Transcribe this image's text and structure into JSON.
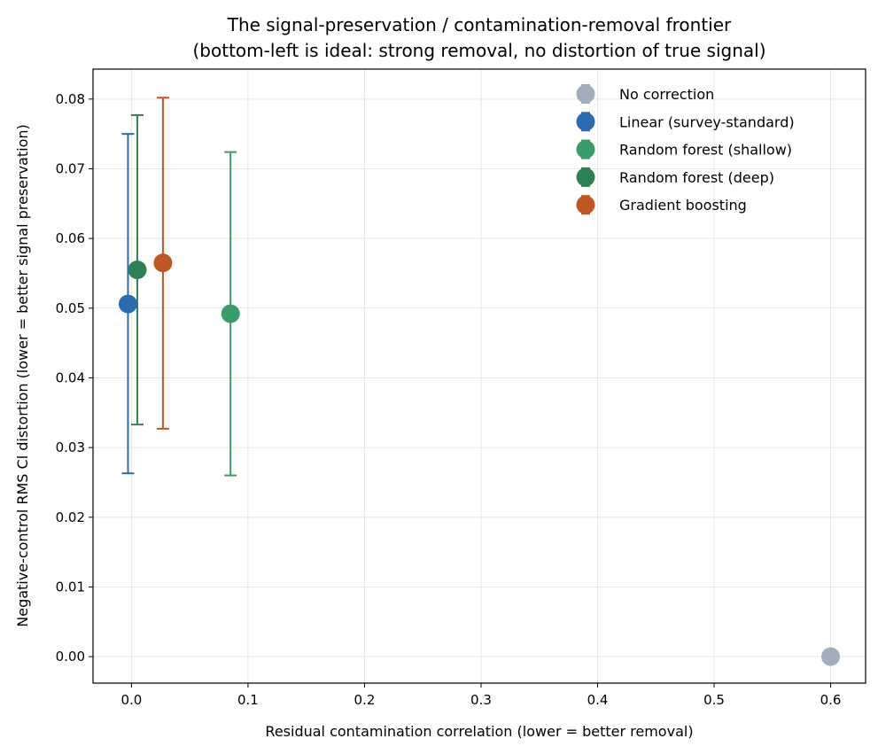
{
  "chart_data": {
    "type": "scatter",
    "title_lines": [
      "The signal-preservation / contamination-removal frontier",
      "(bottom-left is ideal: strong removal, no distortion of true signal)"
    ],
    "xlabel": "Residual contamination correlation (lower = better removal)",
    "ylabel": "Negative-control RMS Cl distortion (lower = better signal preservation)",
    "xlim": [
      -0.033,
      0.63
    ],
    "ylim": [
      -0.0038,
      0.0843
    ],
    "xticks": [
      0.0,
      0.1,
      0.2,
      0.3,
      0.4,
      0.5,
      0.6
    ],
    "yticks": [
      0.0,
      0.01,
      0.02,
      0.03,
      0.04,
      0.05,
      0.06,
      0.07,
      0.08
    ],
    "xtick_labels": [
      "0.0",
      "0.1",
      "0.2",
      "0.3",
      "0.4",
      "0.5",
      "0.6"
    ],
    "ytick_labels": [
      "0.00",
      "0.01",
      "0.02",
      "0.03",
      "0.04",
      "0.05",
      "0.06",
      "0.07",
      "0.08"
    ],
    "grid": true,
    "legend_position": "top-right",
    "series": [
      {
        "name": "No correction",
        "color": "#a3adbd",
        "x": 0.6,
        "y": 0.0,
        "yerr_low": 0.0,
        "yerr_high": 0.0
      },
      {
        "name": "Linear (survey-standard)",
        "color": "#2b6cb0",
        "x": -0.003,
        "y": 0.0506,
        "yerr_low": 0.0263,
        "yerr_high": 0.075
      },
      {
        "name": "Random forest (shallow)",
        "color": "#3a9c69",
        "x": 0.085,
        "y": 0.0492,
        "yerr_low": 0.026,
        "yerr_high": 0.0724
      },
      {
        "name": "Random forest (deep)",
        "color": "#2e8055",
        "x": 0.005,
        "y": 0.0555,
        "yerr_low": 0.0333,
        "yerr_high": 0.0777
      },
      {
        "name": "Gradient boosting",
        "color": "#c05621",
        "x": 0.027,
        "y": 0.0565,
        "yerr_low": 0.0327,
        "yerr_high": 0.0802
      }
    ]
  }
}
